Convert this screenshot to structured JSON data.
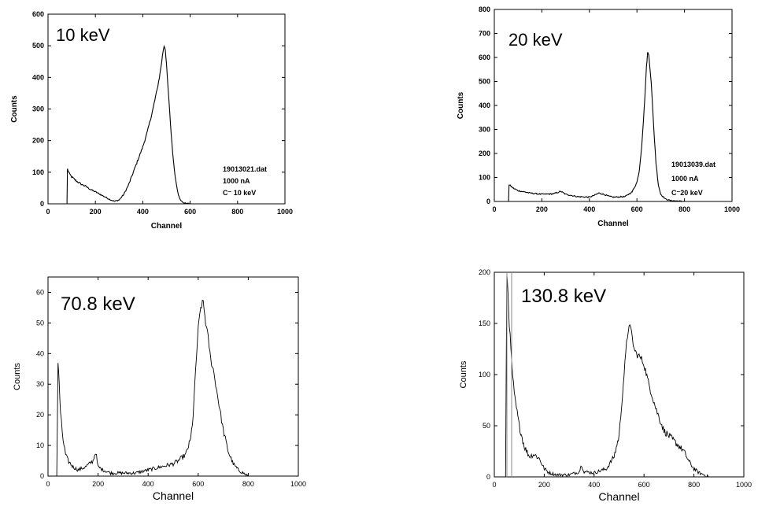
{
  "chart_data": [
    {
      "type": "line",
      "title": "10 keV",
      "xlabel": "Channel",
      "ylabel": "Counts",
      "xlim": [
        0,
        1000
      ],
      "ylim": [
        0,
        600
      ],
      "xticks": [
        0,
        200,
        400,
        600,
        800,
        1000
      ],
      "yticks": [
        0,
        100,
        200,
        300,
        400,
        500,
        600
      ],
      "annotations": [
        "19013021.dat",
        "1000 nA",
        "C⁻ 10 keV"
      ],
      "series": [
        {
          "x": [
            80,
            82,
            90,
            100,
            120,
            140,
            160,
            180,
            200,
            220,
            240,
            260,
            280,
            300,
            320,
            340,
            360,
            380,
            400,
            420,
            440,
            460,
            470,
            480,
            485,
            490,
            495,
            500,
            510,
            520,
            530,
            540,
            550,
            560,
            570,
            580,
            600,
            700,
            800,
            1000
          ],
          "y": [
            0,
            110,
            95,
            85,
            72,
            62,
            55,
            45,
            38,
            30,
            22,
            14,
            8,
            12,
            30,
            60,
            100,
            140,
            180,
            230,
            290,
            360,
            400,
            450,
            480,
            500,
            490,
            440,
            330,
            220,
            130,
            70,
            30,
            10,
            4,
            2,
            0,
            0,
            0,
            0
          ]
        }
      ]
    },
    {
      "type": "line",
      "title": "20 keV",
      "xlabel": "Channel",
      "ylabel": "Counts",
      "xlim": [
        0,
        1000
      ],
      "ylim": [
        0,
        800
      ],
      "xticks": [
        0,
        200,
        400,
        600,
        800,
        1000
      ],
      "yticks": [
        0,
        100,
        200,
        300,
        400,
        500,
        600,
        700,
        800
      ],
      "annotations": [
        "19013039.dat",
        "1000 nA",
        "C⁻20 keV"
      ],
      "series": [
        {
          "x": [
            60,
            62,
            80,
            100,
            150,
            200,
            250,
            280,
            300,
            350,
            400,
            420,
            440,
            460,
            480,
            500,
            550,
            580,
            600,
            610,
            620,
            630,
            640,
            645,
            650,
            660,
            670,
            680,
            690,
            700,
            720,
            740,
            800,
            1000
          ],
          "y": [
            0,
            70,
            55,
            45,
            35,
            30,
            32,
            42,
            30,
            20,
            18,
            25,
            35,
            30,
            22,
            18,
            20,
            40,
            80,
            130,
            230,
            380,
            560,
            620,
            610,
            500,
            320,
            160,
            70,
            30,
            10,
            4,
            0,
            0
          ]
        }
      ]
    },
    {
      "type": "line",
      "title": "70.8 keV",
      "xlabel": "Channel",
      "ylabel": "Counts",
      "xlim": [
        0,
        1000
      ],
      "ylim": [
        0,
        65
      ],
      "xticks": [
        0,
        200,
        400,
        600,
        800,
        1000
      ],
      "yticks": [
        0,
        10,
        20,
        30,
        40,
        50,
        60
      ],
      "series": [
        {
          "x": [
            35,
            40,
            45,
            50,
            60,
            70,
            80,
            100,
            120,
            150,
            180,
            190,
            200,
            220,
            250,
            300,
            350,
            400,
            450,
            500,
            520,
            550,
            570,
            580,
            590,
            600,
            610,
            620,
            630,
            640,
            650,
            660,
            670,
            680,
            690,
            700,
            720,
            740,
            760,
            780,
            800,
            1000
          ],
          "y": [
            0,
            37,
            30,
            20,
            12,
            7,
            5,
            3,
            2,
            3,
            5,
            8,
            3,
            2,
            1,
            1,
            1,
            2,
            3,
            4,
            5,
            7,
            12,
            20,
            35,
            48,
            55,
            57,
            50,
            45,
            38,
            35,
            30,
            25,
            20,
            15,
            8,
            4,
            2,
            1,
            0,
            0
          ]
        }
      ]
    },
    {
      "type": "line",
      "title": "130.8 keV",
      "xlabel": "Channel",
      "ylabel": "Counts",
      "xlim": [
        0,
        1000
      ],
      "ylim": [
        0,
        200
      ],
      "xticks": [
        0,
        200,
        400,
        600,
        800,
        1000
      ],
      "yticks": [
        0,
        50,
        100,
        150,
        200
      ],
      "series": [
        {
          "x": [
            45,
            50,
            55,
            60,
            70,
            80,
            100,
            120,
            140,
            160,
            180,
            200,
            220,
            250,
            300,
            340,
            350,
            360,
            400,
            450,
            480,
            500,
            510,
            520,
            530,
            540,
            550,
            560,
            570,
            580,
            590,
            600,
            620,
            650,
            680,
            700,
            720,
            740,
            760,
            780,
            800,
            820,
            840,
            860,
            1000
          ],
          "y": [
            0,
            200,
            180,
            150,
            110,
            80,
            50,
            30,
            20,
            22,
            18,
            8,
            4,
            2,
            2,
            5,
            12,
            5,
            4,
            8,
            20,
            40,
            70,
            100,
            130,
            150,
            140,
            125,
            120,
            118,
            115,
            110,
            90,
            65,
            45,
            40,
            35,
            30,
            25,
            15,
            8,
            4,
            2,
            0,
            0
          ]
        }
      ]
    }
  ]
}
